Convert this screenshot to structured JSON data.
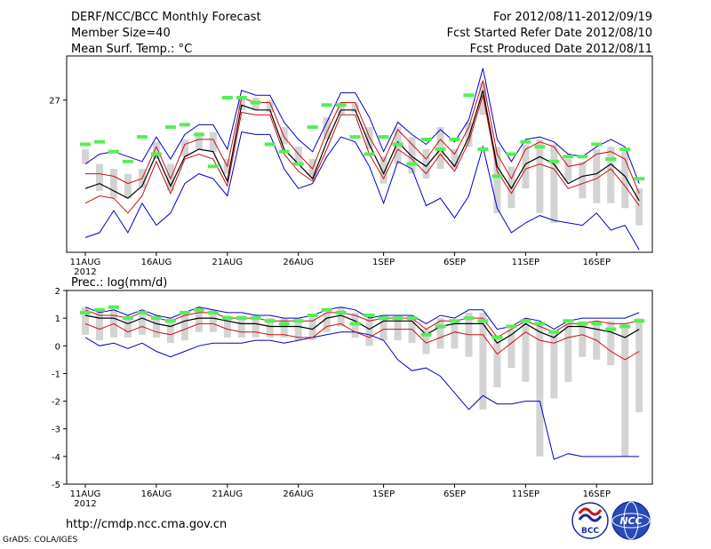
{
  "header": {
    "title_line1": "DERF/NCC/BCC Monthly Forecast",
    "title_line2": "Member Size=40",
    "title_line3": "Mean Surf. Temp.: °C",
    "right_line1": "For 2012/08/11-2012/09/19",
    "right_line2": "Fcst Started Refer Date 2012/08/10",
    "right_line3": "Fcst Produced Date 2012/08/11"
  },
  "footer": {
    "url": "http://cmdp.ncc.cma.gov.cn",
    "grads_credit": "GrADS: COLA/IGES",
    "logo_bcc_text": "BCC",
    "logo_ncc_text": "NCC"
  },
  "colors": {
    "box": "#d3d3d3",
    "green": "#55ee55",
    "red": "#cc1111",
    "blue": "#0000cc",
    "mean": "#000000"
  },
  "chart_data": [
    {
      "type": "line",
      "title": "Mean Surf. Temp.: °C",
      "x_start_label": "11AUG 2012",
      "tick_labels": [
        "11AUG",
        "16AUG",
        "21AUG",
        "26AUG",
        "1SEP",
        "6SEP",
        "11SEP",
        "16SEP"
      ],
      "tick_year": "2012",
      "tick_day_index": [
        0,
        5,
        10,
        15,
        21,
        26,
        31,
        36
      ],
      "ylim": [
        20.8,
        28.8
      ],
      "yticks": [
        27
      ],
      "series": [
        {
          "name": "max",
          "values": [
            24.4,
            24.8,
            24.9,
            24.7,
            24.5,
            25.5,
            24.6,
            25.6,
            26.0,
            26.0,
            25.0,
            27.4,
            27.2,
            27.2,
            26.1,
            25.4,
            24.9,
            26.1,
            27.3,
            27.3,
            26.3,
            24.9,
            26.1,
            25.6,
            25.2,
            25.8,
            25.3,
            26.2,
            28.3,
            25.4,
            24.5,
            25.4,
            25.5,
            25.3,
            24.8,
            24.7,
            25.1,
            25.4,
            25.1,
            23.6
          ]
        },
        {
          "name": "p95",
          "values": [
            24.0,
            24.0,
            23.9,
            23.6,
            23.8,
            25.1,
            23.8,
            25.2,
            25.4,
            25.4,
            24.3,
            27.1,
            26.9,
            26.9,
            25.5,
            24.8,
            24.2,
            25.7,
            26.9,
            26.9,
            25.5,
            24.5,
            25.8,
            25.2,
            24.6,
            25.4,
            24.8,
            25.9,
            27.8,
            24.8,
            23.8,
            25.0,
            25.3,
            25.1,
            24.3,
            24.4,
            24.8,
            24.9,
            24.6,
            23.2
          ]
        },
        {
          "name": "mean",
          "values": [
            23.4,
            23.6,
            23.3,
            23.0,
            23.5,
            24.8,
            23.5,
            24.7,
            25.0,
            24.9,
            23.7,
            26.8,
            26.6,
            26.6,
            25.0,
            24.4,
            23.8,
            25.3,
            26.6,
            26.6,
            25.2,
            24.0,
            25.3,
            24.7,
            24.3,
            25.0,
            24.3,
            25.5,
            27.4,
            24.3,
            23.4,
            24.4,
            24.7,
            24.4,
            23.6,
            23.9,
            24.0,
            24.4,
            23.9,
            22.9
          ]
        },
        {
          "name": "p5",
          "values": [
            22.8,
            23.1,
            23.0,
            22.4,
            23.1,
            24.5,
            23.2,
            24.6,
            24.8,
            24.6,
            23.5,
            26.5,
            26.4,
            26.4,
            24.8,
            24.1,
            23.7,
            25.0,
            26.4,
            26.4,
            24.8,
            23.8,
            25.0,
            24.6,
            24.0,
            24.8,
            24.1,
            25.3,
            27.2,
            24.1,
            23.2,
            24.2,
            24.4,
            24.2,
            23.4,
            23.6,
            23.8,
            24.2,
            23.5,
            22.7
          ]
        },
        {
          "name": "min",
          "values": [
            21.4,
            21.6,
            22.5,
            21.6,
            22.8,
            21.9,
            22.4,
            23.6,
            24.0,
            23.8,
            23.1,
            25.7,
            25.6,
            25.6,
            24.2,
            23.4,
            23.6,
            24.7,
            25.5,
            25.3,
            24.3,
            22.8,
            24.5,
            24.2,
            22.7,
            23.0,
            22.2,
            23.1,
            25.1,
            22.6,
            21.6,
            22.0,
            22.3,
            22.1,
            22.0,
            21.9,
            22.4,
            21.7,
            21.9,
            20.9
          ]
        },
        {
          "name": "box_top",
          "values": [
            25.0,
            24.4,
            24.2,
            24.0,
            24.2,
            25.3,
            24.4,
            25.4,
            25.7,
            25.7,
            24.6,
            27.1,
            27.1,
            27.0,
            25.9,
            25.1,
            24.6,
            26.3,
            26.9,
            26.9,
            25.9,
            24.7,
            25.9,
            25.5,
            25.0,
            25.9,
            25.0,
            26.1,
            27.7,
            25.1,
            24.3,
            25.2,
            25.4,
            25.2,
            24.6,
            24.5,
            25.0,
            25.1,
            24.9,
            23.4
          ]
        },
        {
          "name": "box_bottom",
          "values": [
            24.4,
            23.3,
            23.0,
            23.0,
            23.4,
            24.6,
            23.3,
            24.7,
            25.0,
            24.9,
            24.0,
            26.6,
            26.6,
            26.5,
            25.2,
            24.4,
            23.9,
            25.4,
            26.4,
            26.5,
            25.0,
            23.6,
            24.4,
            24.0,
            23.8,
            24.2,
            24.2,
            25.1,
            26.4,
            22.4,
            22.6,
            23.4,
            22.4,
            22.0,
            23.7,
            23.0,
            22.8,
            22.8,
            22.6,
            21.9
          ]
        },
        {
          "name": "observed",
          "values": [
            25.2,
            25.3,
            24.9,
            24.5,
            25.5,
            24.8,
            25.9,
            26.0,
            25.6,
            24.3,
            27.1,
            27.1,
            26.9,
            25.2,
            24.9,
            24.4,
            25.9,
            26.8,
            26.8,
            25.5,
            24.8,
            25.5,
            25.2,
            24.4,
            25.4,
            25.0,
            25.4,
            27.2,
            25.0,
            23.9,
            24.8,
            25.3,
            25.1,
            24.5,
            24.7,
            24.7,
            25.2,
            24.6,
            25.0,
            23.8
          ]
        }
      ]
    },
    {
      "type": "line",
      "title": "Prec.: log(mm/d)",
      "x_start_label": "11AUG 2012",
      "tick_labels": [
        "11AUG",
        "16AUG",
        "21AUG",
        "26AUG",
        "1SEP",
        "6SEP",
        "11SEP",
        "16SEP"
      ],
      "tick_year": "2012",
      "tick_day_index": [
        0,
        5,
        10,
        15,
        21,
        26,
        31,
        36
      ],
      "ylim": [
        -5,
        2
      ],
      "yticks": [
        2,
        1,
        0,
        -1,
        -2,
        -3,
        -4,
        -5
      ],
      "series": [
        {
          "name": "max",
          "values": [
            1.4,
            1.2,
            1.3,
            1.1,
            1.3,
            1.1,
            1.0,
            1.2,
            1.4,
            1.3,
            1.2,
            1.2,
            1.1,
            1.1,
            1.0,
            1.0,
            1.1,
            1.3,
            1.4,
            1.3,
            1.0,
            1.1,
            1.1,
            1.1,
            0.8,
            1.1,
            1.0,
            1.3,
            1.3,
            0.6,
            0.7,
            1.0,
            0.9,
            0.6,
            0.9,
            1.0,
            1.0,
            1.0,
            1.0,
            1.2
          ]
        },
        {
          "name": "p95",
          "values": [
            1.3,
            1.1,
            1.1,
            1.0,
            1.2,
            1.0,
            0.9,
            1.1,
            1.2,
            1.2,
            1.0,
            1.0,
            1.0,
            0.9,
            0.9,
            0.9,
            0.9,
            1.2,
            1.2,
            1.1,
            0.9,
            1.0,
            1.0,
            1.0,
            0.6,
            0.9,
            0.9,
            1.0,
            1.0,
            0.3,
            0.6,
            0.9,
            0.7,
            0.5,
            0.8,
            0.8,
            0.9,
            0.8,
            0.8,
            0.9
          ]
        },
        {
          "name": "mean",
          "values": [
            1.1,
            1.0,
            1.0,
            0.8,
            1.0,
            0.8,
            0.7,
            0.9,
            1.0,
            1.0,
            0.9,
            0.8,
            0.8,
            0.7,
            0.7,
            0.7,
            0.6,
            1.0,
            1.1,
            0.9,
            0.6,
            0.9,
            0.9,
            0.9,
            0.4,
            0.7,
            0.8,
            0.8,
            0.8,
            0.1,
            0.4,
            0.8,
            0.5,
            0.3,
            0.7,
            0.7,
            0.6,
            0.5,
            0.3,
            0.6
          ]
        },
        {
          "name": "p5",
          "values": [
            0.8,
            0.6,
            0.8,
            0.5,
            0.7,
            0.5,
            0.4,
            0.6,
            0.8,
            0.8,
            0.6,
            0.5,
            0.5,
            0.4,
            0.4,
            0.3,
            0.3,
            0.7,
            0.8,
            0.5,
            0.3,
            0.6,
            0.6,
            0.6,
            0.1,
            0.3,
            0.5,
            0.4,
            0.4,
            -0.3,
            0.1,
            0.5,
            0.2,
            0.1,
            0.3,
            0.4,
            0.2,
            -0.2,
            -0.5,
            -0.2
          ]
        },
        {
          "name": "min",
          "values": [
            0.3,
            0.0,
            0.1,
            -0.1,
            0.1,
            -0.2,
            -0.4,
            -0.2,
            0.0,
            0.1,
            0.1,
            0.1,
            0.2,
            0.2,
            0.1,
            0.2,
            0.3,
            0.4,
            0.5,
            0.5,
            0.4,
            0.2,
            -0.5,
            -0.9,
            -0.8,
            -1.1,
            -1.7,
            -2.3,
            -1.8,
            -2.1,
            -2.1,
            -2.0,
            -2.0,
            -4.1,
            -3.9,
            -4.0,
            -4.0,
            -4.0,
            -4.0,
            -4.0
          ]
        },
        {
          "name": "box_top",
          "values": [
            1.4,
            1.2,
            1.3,
            1.1,
            1.2,
            1.1,
            1.0,
            1.2,
            1.4,
            1.3,
            1.1,
            1.1,
            1.1,
            1.0,
            1.0,
            1.0,
            1.0,
            1.2,
            1.4,
            1.2,
            1.0,
            1.1,
            1.1,
            1.1,
            0.6,
            1.0,
            0.9,
            1.2,
            1.2,
            0.4,
            0.6,
            1.0,
            0.8,
            0.5,
            0.8,
            0.9,
            0.9,
            0.9,
            0.8,
            1.0
          ]
        },
        {
          "name": "box_bottom",
          "values": [
            0.4,
            0.2,
            0.3,
            0.3,
            0.4,
            0.3,
            0.1,
            0.2,
            0.5,
            0.5,
            0.3,
            0.3,
            0.3,
            0.3,
            0.3,
            0.2,
            0.2,
            0.5,
            0.7,
            0.3,
            0.0,
            0.2,
            0.2,
            0.1,
            -0.3,
            -0.1,
            -0.1,
            -0.4,
            -2.3,
            -1.5,
            -0.8,
            -1.3,
            -4.0,
            -1.9,
            -1.3,
            -0.4,
            -0.5,
            -0.7,
            -4.0,
            -2.4
          ]
        },
        {
          "name": "observed",
          "values": [
            1.2,
            1.3,
            1.4,
            1.0,
            1.2,
            1.0,
            0.9,
            1.2,
            1.3,
            1.2,
            1.0,
            1.0,
            1.0,
            0.9,
            0.8,
            0.9,
            1.1,
            1.3,
            1.2,
            0.8,
            1.1,
            1.0,
            1.0,
            1.0,
            0.4,
            0.7,
            0.9,
            1.0,
            0.9,
            0.3,
            0.7,
            0.9,
            0.8,
            0.5,
            0.9,
            0.8,
            0.8,
            0.6,
            0.7,
            0.9
          ]
        }
      ]
    }
  ]
}
